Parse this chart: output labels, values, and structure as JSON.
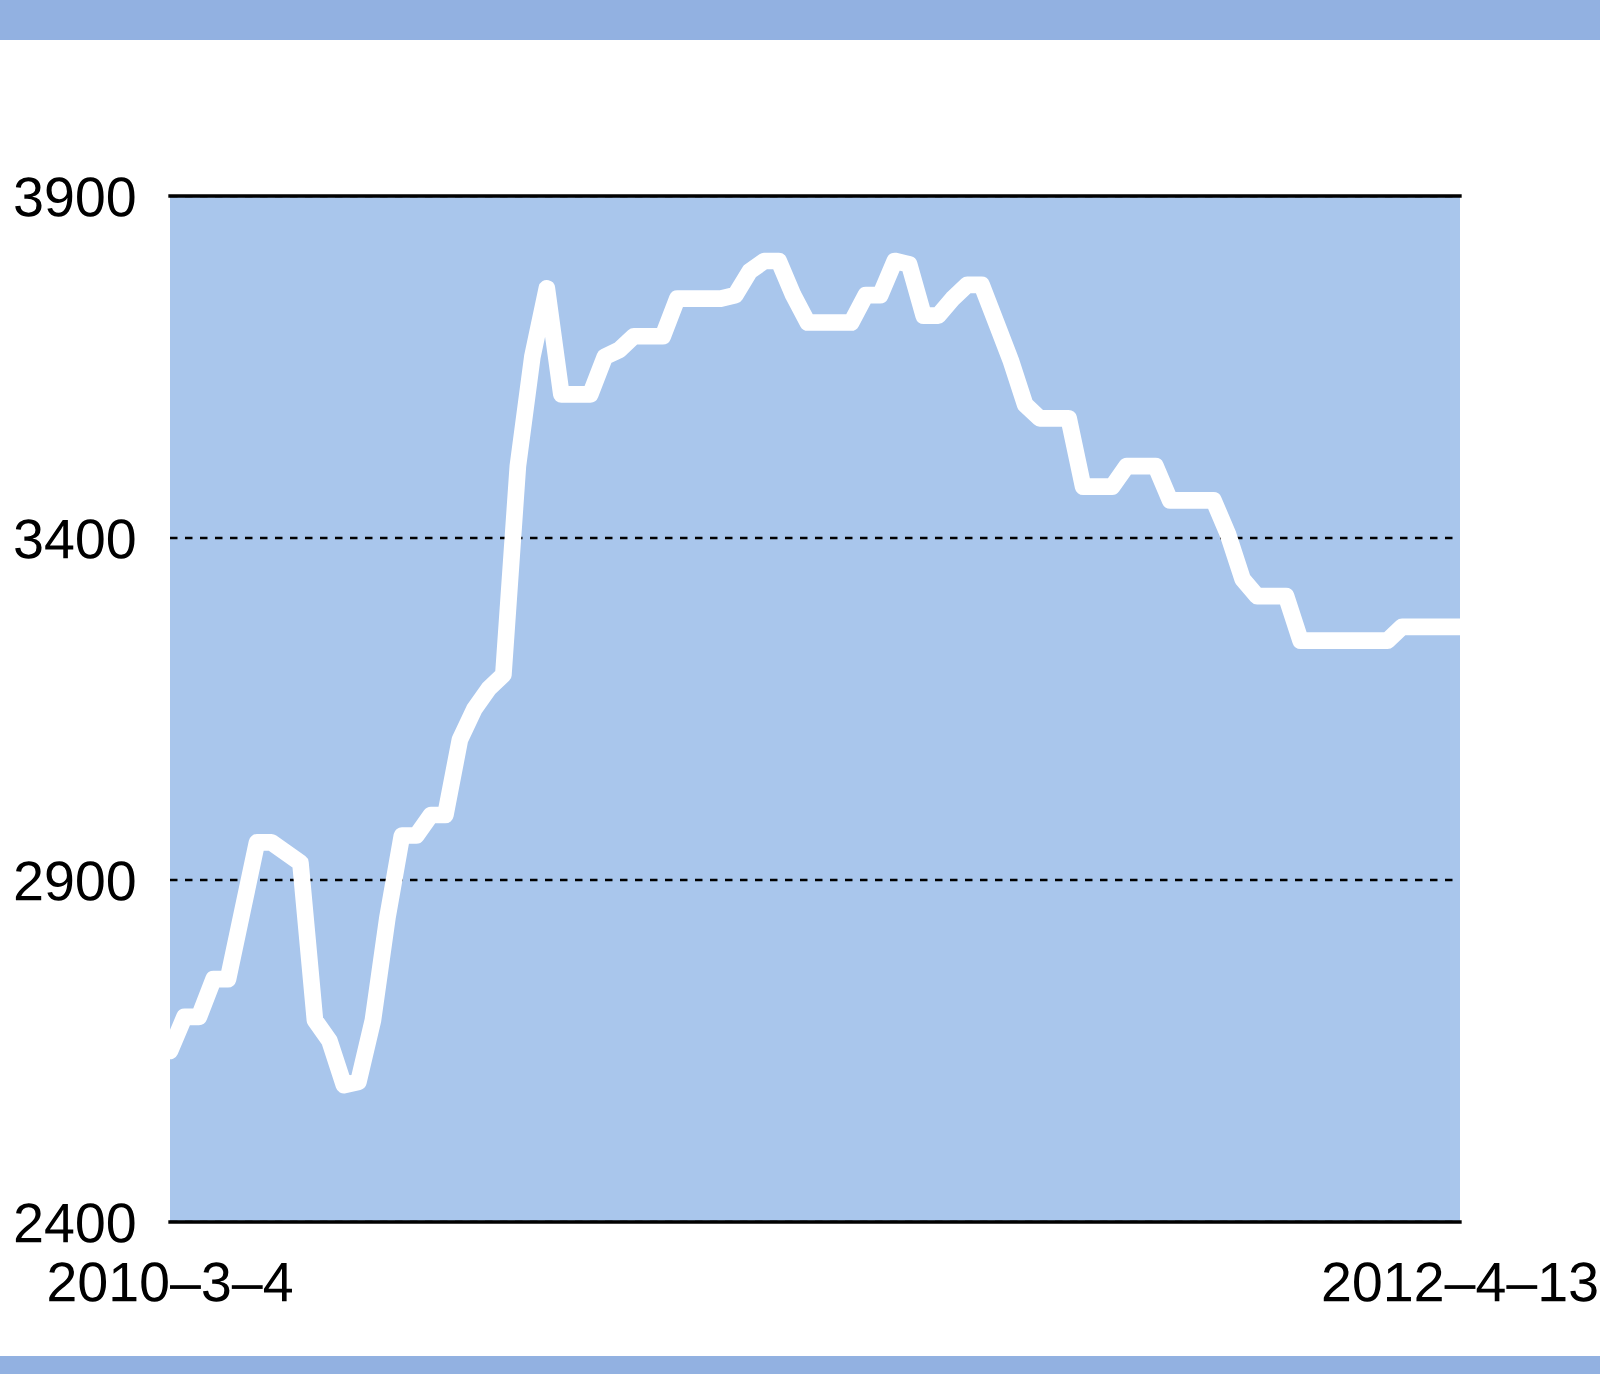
{
  "chart_data": {
    "type": "line",
    "categories": [
      "2010–3–4",
      null,
      null,
      null,
      null,
      null,
      null,
      null,
      null,
      null,
      null,
      null,
      null,
      null,
      null,
      null,
      null,
      null,
      null,
      null,
      null,
      null,
      null,
      null,
      null,
      null,
      null,
      null,
      null,
      null,
      null,
      null,
      null,
      null,
      null,
      null,
      null,
      null,
      null,
      null,
      null,
      null,
      null,
      null,
      null,
      null,
      null,
      null,
      null,
      null,
      null,
      null,
      null,
      null,
      null,
      null,
      null,
      null,
      null,
      null,
      null,
      null,
      null,
      null,
      null,
      null,
      null,
      null,
      null,
      null,
      null,
      null,
      null,
      null,
      null,
      null,
      null,
      null,
      null,
      null,
      null,
      null,
      null,
      null,
      null,
      null,
      null,
      null,
      null,
      "2012–4–13"
    ],
    "series": [
      {
        "color": "#ffffff",
        "values": [
          2650,
          2700,
          2700,
          2755,
          2755,
          2855,
          2955,
          2955,
          2940,
          2925,
          2695,
          2665,
          2600,
          2605,
          2695,
          2845,
          2965,
          2965,
          2995,
          2995,
          3105,
          3150,
          3180,
          3200,
          3505,
          3665,
          3765,
          3610,
          3610,
          3610,
          3665,
          3675,
          3695,
          3695,
          3695,
          3750,
          3750,
          3750,
          3750,
          3755,
          3790,
          3805,
          3805,
          3755,
          3715,
          3715,
          3715,
          3715,
          3755,
          3755,
          3805,
          3800,
          3725,
          3725,
          3750,
          3770,
          3770,
          3715,
          3660,
          3595,
          3575,
          3575,
          3575,
          3475,
          3475,
          3475,
          3505,
          3505,
          3505,
          3455,
          3455,
          3455,
          3455,
          3405,
          3340,
          3315,
          3315,
          3315,
          3250,
          3250,
          3250,
          3250,
          3250,
          3250,
          3250,
          3270,
          3270,
          3270,
          3270,
          3270
        ]
      }
    ],
    "ylim": [
      2400,
      3900
    ],
    "yticks": [
      2400,
      2900,
      3400,
      3900
    ],
    "grid": "y",
    "line_style": "solid",
    "marker": "none",
    "legend": false
  }
}
